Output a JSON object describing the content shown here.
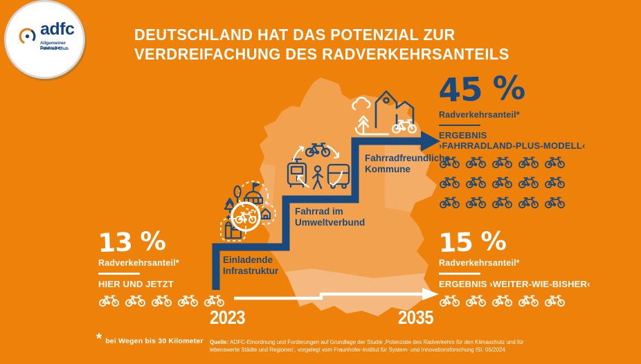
{
  "colors": {
    "background": "#ED8109",
    "map": "#F2A24F",
    "map_light": "#F5B87E",
    "blue": "#1A4A7D",
    "white": "#FFFFFF",
    "logo_orange": "#E87D15",
    "logo_blue": "#14427C"
  },
  "logo": {
    "brand": "adfc",
    "subline1": "Allgemeiner Deutscher",
    "subline2": "Fahrrad-Club"
  },
  "title": {
    "line1": "DEUTSCHLAND HAT DAS POTENZIAL ZUR",
    "line2": "VERDREIFACHUNG DES RADVERKEHRSANTEILS"
  },
  "stats": {
    "now": {
      "value": "13 %",
      "label": "Radverkehrsanteil*",
      "sublabel": "HIER UND JETZT",
      "bikes": 5
    },
    "plus": {
      "value": "45 %",
      "label": "Radverkehrsanteil*",
      "sublabel_line1": "ERGEBNIS",
      "sublabel_line2": "›FAHRRADLAND-PLUS-MODELL‹",
      "bikes": 15
    },
    "base": {
      "value": "15 %",
      "label": "Radverkehrsanteil*",
      "sublabel": "ERGEBNIS ›WEITER-WIE-BISHER‹",
      "bikes": 5
    }
  },
  "steps": [
    {
      "line1": "Einladende",
      "line2": "Infrastruktur"
    },
    {
      "line1": "Fahrrad im",
      "line2": "Umweltverbund"
    },
    {
      "line1": "Fahrradfreundliche",
      "line2": "Kommune"
    }
  ],
  "timeline": {
    "start": "2023",
    "end": "2035"
  },
  "footnote": {
    "marker": "*",
    "text": "bei Wegen bis 30 Kilometer"
  },
  "source": {
    "label": "Quelle:",
    "line1": "ADFC-Einordnung und Forderungen auf Grundlage der Studie ‚Potenziale des Radverkehrs für den Klimaschutz und für",
    "line2": "lebenswerte Städte und Regionen‘, vorgelegt vom Fraunhofer-Institut für System- und Innovationsforschung ISI, 05/2024"
  },
  "icons": [
    "adfc-wheel-icon",
    "bike-icon",
    "germany-map",
    "stairs-arrow-icon",
    "timeline-arrow-icon",
    "town-hall-icon",
    "church-icon",
    "house-icon",
    "trees-icon",
    "tram-icon",
    "bus-icon",
    "pedestrian-icon",
    "cycle-arrows-icon",
    "city-icon",
    "cloud-icon",
    "tree-arrow-icon",
    "road-icon"
  ],
  "chart_data": {
    "type": "bar",
    "categories": [
      "2023 · Hier und Jetzt",
      "2035 · Ergebnis ›Weiter-wie-bisher‹",
      "2035 · Ergebnis ›Fahrradland-Plus-Modell‹"
    ],
    "values": [
      13,
      15,
      45
    ],
    "title": "Radverkehrsanteil in Deutschland (bei Wegen bis 30 Kilometer)",
    "unit": "%"
  }
}
